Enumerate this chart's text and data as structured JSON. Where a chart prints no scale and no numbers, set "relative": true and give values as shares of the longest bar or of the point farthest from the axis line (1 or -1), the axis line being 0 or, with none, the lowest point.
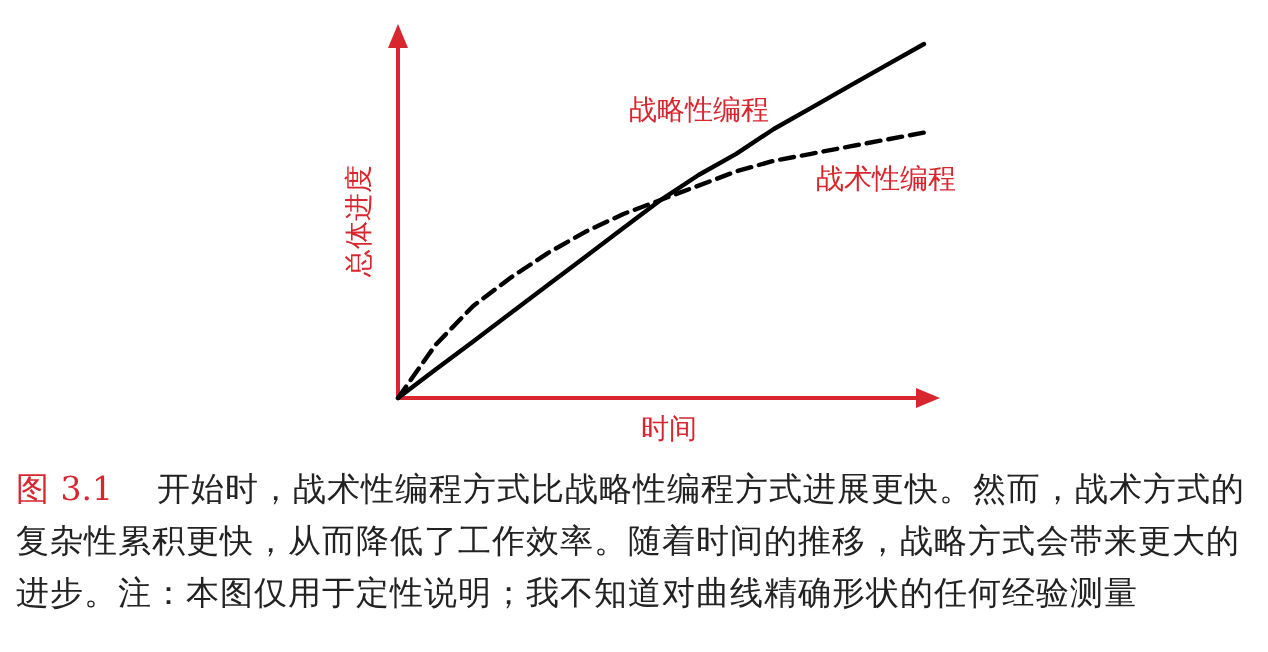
{
  "chart_data": {
    "type": "line",
    "relative": true,
    "xlabel": "时间",
    "ylabel": "总体进度",
    "categories": [
      null,
      null,
      null,
      null,
      null,
      null,
      null,
      null,
      null,
      null,
      null,
      null,
      null,
      null,
      null
    ],
    "series": [
      {
        "name": "战略性编程",
        "color": "#000000",
        "line_style": "solid",
        "values": [
          0,
          0.08,
          0.16,
          0.24,
          0.32,
          0.4,
          0.48,
          0.56,
          0.63,
          0.69,
          0.76,
          0.82,
          0.88,
          0.94,
          1.0
        ]
      },
      {
        "name": "战术性编程",
        "color": "#000000",
        "line_style": "dashed",
        "values": [
          0,
          0.15,
          0.26,
          0.34,
          0.41,
          0.47,
          0.52,
          0.56,
          0.6,
          0.64,
          0.67,
          0.69,
          0.71,
          0.73,
          0.75
        ]
      }
    ],
    "annotations": [
      "图 3.1",
      "开始时，战术性编程方式比战略性编程方式进展更快。然而，战术方式的复杂性累积更快，从而降低了工作效率。随着时间的推移，战略方式会带来更大的进步。注：本图仅用于定性说明；我不知道对曲线精确形状的任何经验测量"
    ]
  }
}
